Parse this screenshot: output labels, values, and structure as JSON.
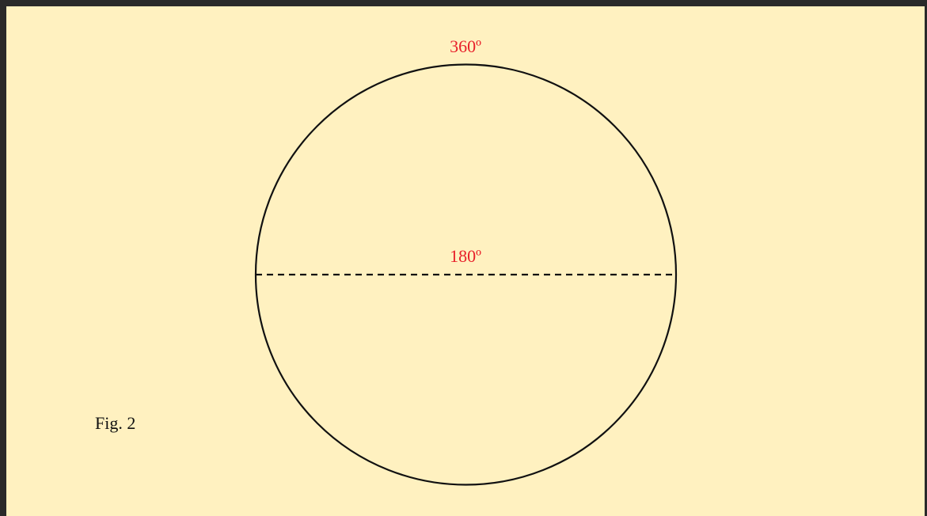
{
  "labels": {
    "top": "360º",
    "diameter": "180º",
    "figure": "Fig. 2"
  }
}
